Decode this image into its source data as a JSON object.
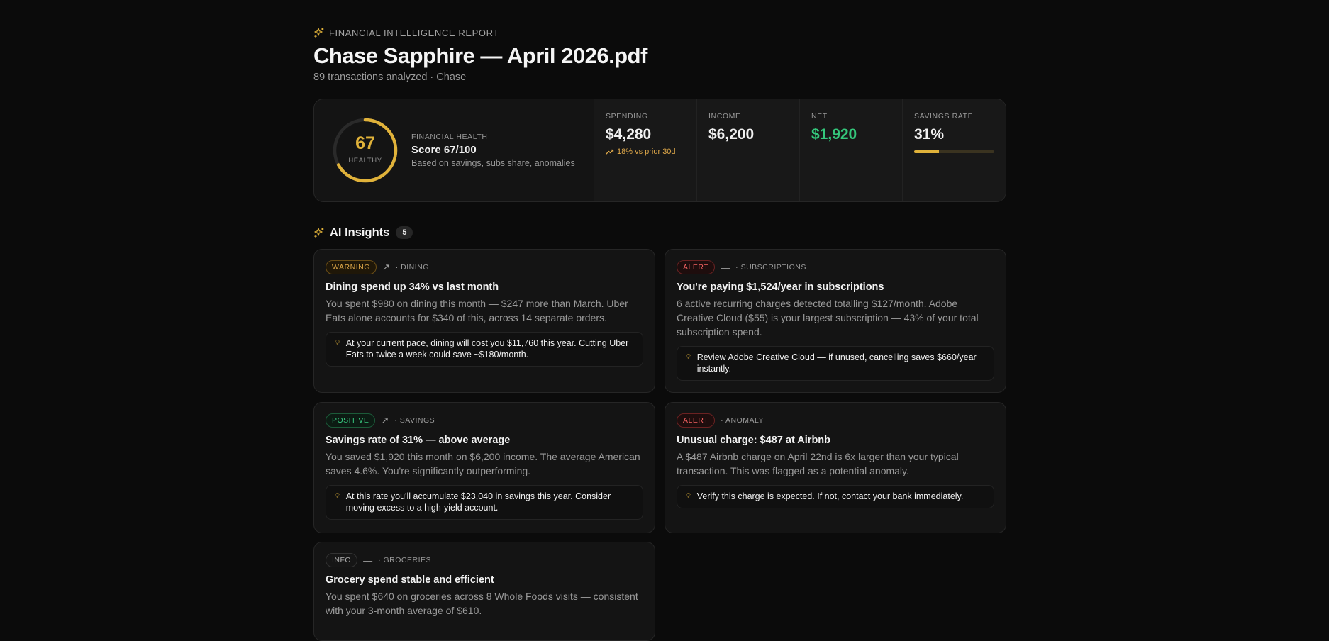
{
  "header": {
    "eyebrow": "FINANCIAL INTELLIGENCE REPORT",
    "title": "Chase Sapphire — April 2026.pdf",
    "subtitle": "89 transactions analyzed · Chase"
  },
  "health": {
    "score_number": "67",
    "status": "HEALTHY",
    "label": "FINANCIAL HEALTH",
    "score_text": "Score 67/100",
    "description": "Based on savings, subs share, anomalies",
    "score_fraction": 0.67
  },
  "metrics": {
    "spending": {
      "label": "SPENDING",
      "value": "$4,280",
      "delta": "18% vs prior 30d"
    },
    "income": {
      "label": "INCOME",
      "value": "$6,200"
    },
    "net": {
      "label": "NET",
      "value": "$1,920"
    },
    "savings_rate": {
      "label": "SAVINGS RATE",
      "value": "31%",
      "progress": 0.31
    }
  },
  "insights": {
    "title": "AI Insights",
    "count": "5",
    "cards": [
      {
        "badge": "WARNING",
        "trend": "↗",
        "category": "· DINING",
        "title": "Dining spend up 34% vs last month",
        "body": "You spent $980 on dining this month — $247 more than March. Uber Eats alone accounts for $340 of this, across 14 separate orders.",
        "tip": "At your current pace, dining will cost you $11,760 this year. Cutting Uber Eats to twice a week could save ~$180/month."
      },
      {
        "badge": "ALERT",
        "trend": "—",
        "category": "· SUBSCRIPTIONS",
        "title": "You're paying $1,524/year in subscriptions",
        "body": "6 active recurring charges detected totalling $127/month. Adobe Creative Cloud ($55) is your largest subscription — 43% of your total subscription spend.",
        "tip": "Review Adobe Creative Cloud — if unused, cancelling saves $660/year instantly."
      },
      {
        "badge": "POSITIVE",
        "trend": "↗",
        "category": "· SAVINGS",
        "title": "Savings rate of 31% — above average",
        "body": "You saved $1,920 this month on $6,200 income. The average American saves 4.6%. You're significantly outperforming.",
        "tip": "At this rate you'll accumulate $23,040 in savings this year. Consider moving excess to a high-yield account."
      },
      {
        "badge": "ALERT",
        "trend": "",
        "category": "· ANOMALY",
        "title": "Unusual charge: $487 at Airbnb",
        "body": "A $487 Airbnb charge on April 22nd is 6x larger than your typical transaction. This was flagged as a potential anomaly.",
        "tip": "Verify this charge is expected. If not, contact your bank immediately."
      },
      {
        "badge": "INFO",
        "trend": "—",
        "category": "· GROCERIES",
        "title": "Grocery spend stable and efficient",
        "body": "You spent $640 on groceries across 8 Whole Foods visits — consistent with your 3-month average of $610."
      }
    ]
  },
  "colors": {
    "accent_gold": "#e0b23a",
    "positive_green": "#34c77b",
    "alert_red": "#f26161",
    "warning_orange": "#e0a94a",
    "background": "#0b0b0b"
  }
}
